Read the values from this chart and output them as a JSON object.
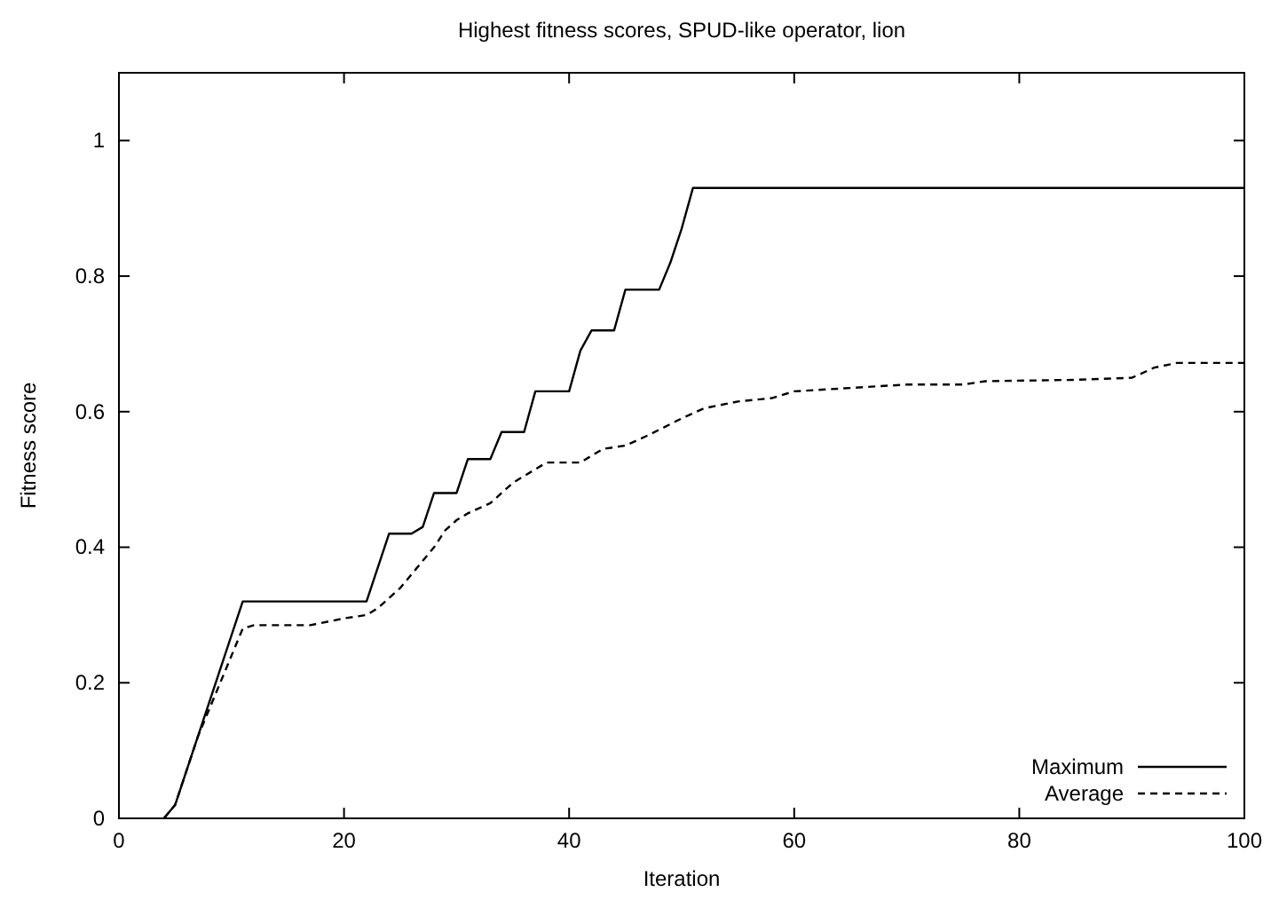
{
  "chart_data": {
    "type": "line",
    "title": "Highest fitness scores, SPUD-like operator, lion",
    "xlabel": "Iteration",
    "ylabel": "Fitness score",
    "xlim": [
      0,
      100
    ],
    "ylim": [
      0,
      1.1
    ],
    "xticks": [
      0,
      20,
      40,
      60,
      80,
      100
    ],
    "yticks": [
      0,
      0.2,
      0.4,
      0.6,
      0.8,
      1
    ],
    "grid": false,
    "legend": "bottom right",
    "marker": "none",
    "series": [
      {
        "name": "Maximum",
        "color": "#000000",
        "line_style": "solid",
        "x": [
          4,
          5,
          11,
          22,
          24,
          26,
          27,
          28,
          30,
          31,
          33,
          34,
          36,
          37,
          40,
          41,
          42,
          44,
          45,
          48,
          49,
          50,
          51,
          100
        ],
        "values": [
          0,
          0.02,
          0.32,
          0.32,
          0.42,
          0.42,
          0.43,
          0.48,
          0.48,
          0.53,
          0.53,
          0.57,
          0.57,
          0.63,
          0.63,
          0.69,
          0.72,
          0.72,
          0.78,
          0.78,
          0.82,
          0.87,
          0.93,
          0.93
        ]
      },
      {
        "name": "Average",
        "color": "#000000",
        "line_style": "dashed",
        "x": [
          4,
          5,
          7,
          9,
          11,
          12,
          17,
          20,
          22,
          23,
          25,
          26,
          28,
          29,
          30,
          31,
          33,
          35,
          36,
          38,
          41,
          43,
          45,
          47,
          50,
          52,
          55,
          58,
          60,
          65,
          70,
          75,
          77,
          85,
          90,
          92,
          94,
          100
        ],
        "values": [
          0,
          0.02,
          0.12,
          0.2,
          0.28,
          0.285,
          0.285,
          0.295,
          0.3,
          0.31,
          0.34,
          0.36,
          0.4,
          0.425,
          0.44,
          0.45,
          0.465,
          0.495,
          0.505,
          0.525,
          0.525,
          0.545,
          0.55,
          0.565,
          0.59,
          0.605,
          0.615,
          0.62,
          0.63,
          0.635,
          0.64,
          0.64,
          0.645,
          0.647,
          0.65,
          0.665,
          0.672,
          0.672
        ]
      }
    ]
  }
}
